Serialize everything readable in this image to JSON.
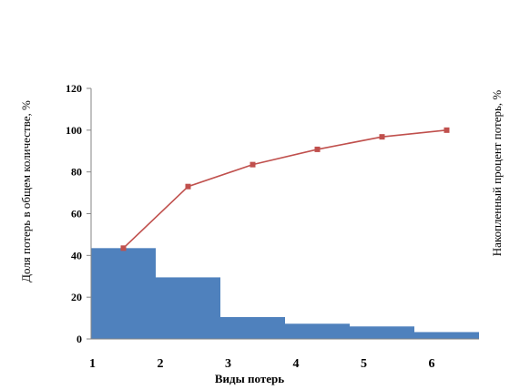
{
  "chart_data": {
    "type": "bar",
    "categories": [
      "1",
      "2",
      "3",
      "4",
      "5",
      "6"
    ],
    "series": [
      {
        "type": "bar",
        "values": [
          43.5,
          29.5,
          10.5,
          7.3,
          6,
          3.3
        ],
        "color": "#4F81BD"
      },
      {
        "type": "line",
        "values": [
          43.5,
          73,
          83.5,
          90.8,
          96.8,
          100
        ],
        "color": "#C0504D",
        "marker": "square"
      }
    ],
    "xlabel": "Виды потерь",
    "ylabel_left": "Доля потерь в общем количестве, %",
    "ylabel_right": "Накопленный процент потерь, %",
    "ylim": [
      0,
      120
    ],
    "yticks": [
      0,
      20,
      40,
      60,
      80,
      100,
      120
    ],
    "grid": false,
    "legend": "none"
  }
}
